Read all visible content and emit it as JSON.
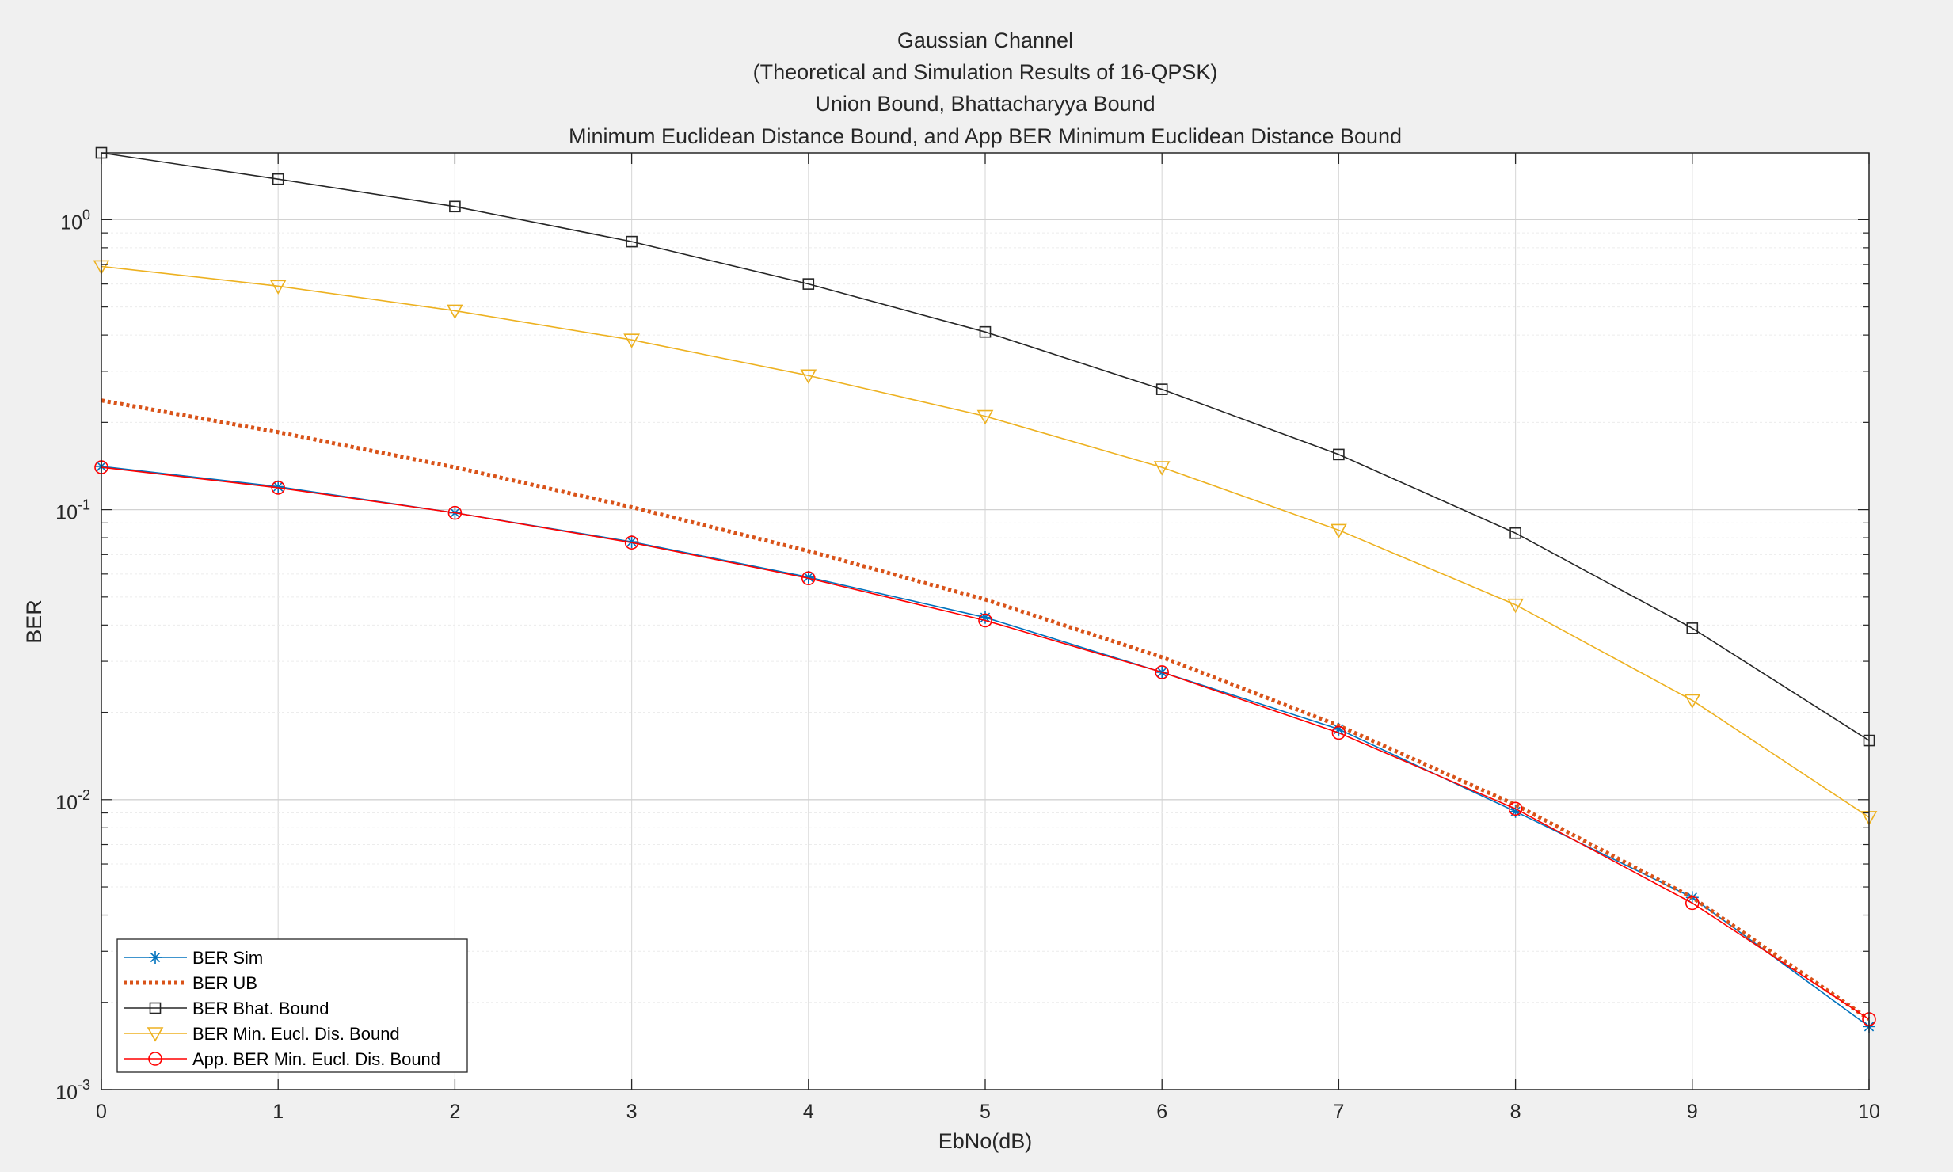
{
  "chart_data": {
    "type": "line",
    "title_lines": [
      "Gaussian Channel",
      "(Theoretical and Simulation Results of 16-QPSK)",
      "Union Bound, Bhattacharyya Bound",
      "Minimum Euclidean Distance Bound, and App BER Minimum Euclidean Distance Bound"
    ],
    "xlabel": "EbNo(dB)",
    "ylabel": "BER",
    "xlim": [
      0,
      10
    ],
    "ylim": [
      0.001,
      1.7
    ],
    "yscale": "log",
    "grid": true,
    "legend_position": "bottom-left",
    "x_ticks": [
      0,
      1,
      2,
      3,
      4,
      5,
      6,
      7,
      8,
      9,
      10
    ],
    "y_ticks": [
      {
        "value": 1,
        "base": "10",
        "exp": "0"
      },
      {
        "value": 0.1,
        "base": "10",
        "exp": "-1"
      },
      {
        "value": 0.01,
        "base": "10",
        "exp": "-2"
      },
      {
        "value": 0.001,
        "base": "10",
        "exp": "-3"
      }
    ],
    "x": [
      0,
      1,
      2,
      3,
      4,
      5,
      6,
      7,
      8,
      9,
      10
    ],
    "series": [
      {
        "name": "BER Sim",
        "color": "#0072BD",
        "marker": "star",
        "style": "solid",
        "values": [
          0.141,
          0.12,
          0.0975,
          0.0775,
          0.0585,
          0.0425,
          0.0275,
          0.0175,
          0.0091,
          0.0046,
          0.00165
        ]
      },
      {
        "name": "BER UB",
        "color": "#D95319",
        "marker": "none",
        "style": "dotted",
        "values": [
          0.238,
          0.185,
          0.14,
          0.102,
          0.072,
          0.049,
          0.031,
          0.018,
          0.0096,
          0.0046,
          0.00175
        ]
      },
      {
        "name": "BER Bhat. Bound",
        "color": "#262626",
        "marker": "square",
        "style": "solid",
        "values": [
          1.7,
          1.38,
          1.11,
          0.84,
          0.6,
          0.41,
          0.26,
          0.155,
          0.083,
          0.039,
          0.016
        ]
      },
      {
        "name": "BER Min. Eucl. Dis. Bound",
        "color": "#EDB120",
        "marker": "triangle-down",
        "style": "solid",
        "values": [
          0.69,
          0.59,
          0.485,
          0.385,
          0.29,
          0.21,
          0.14,
          0.085,
          0.047,
          0.022,
          0.0087
        ]
      },
      {
        "name": "App. BER Min. Eucl. Dis. Bound",
        "color": "#FF0000",
        "marker": "circle",
        "style": "solid",
        "values": [
          0.14,
          0.119,
          0.0975,
          0.077,
          0.058,
          0.0415,
          0.0275,
          0.017,
          0.0093,
          0.0044,
          0.00175
        ]
      }
    ]
  }
}
